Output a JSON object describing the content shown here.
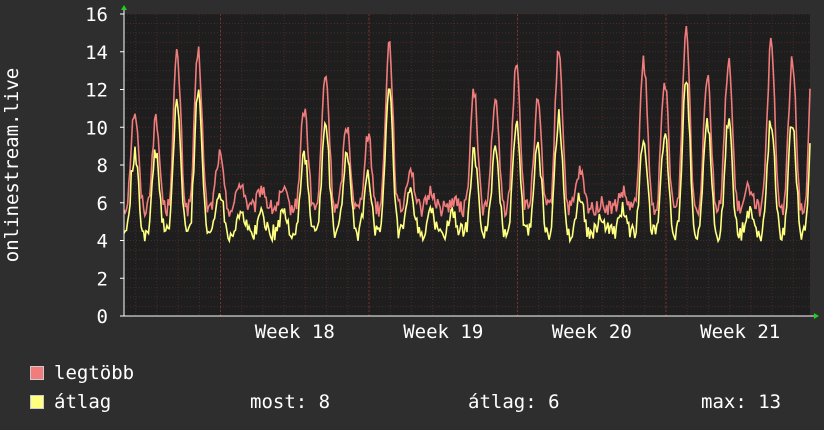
{
  "chart_data": {
    "type": "line",
    "ylabel": "onlinestream.live",
    "xlabel": "",
    "ylim": [
      0,
      16
    ],
    "yticks": [
      0,
      2,
      4,
      6,
      8,
      10,
      12,
      14,
      16
    ],
    "x_range_weeks": [
      17.35,
      21.97
    ],
    "x_tick_labels": [
      {
        "week": 18,
        "label": "Week 18"
      },
      {
        "week": 19,
        "label": "Week 19"
      },
      {
        "week": 20,
        "label": "Week 20"
      },
      {
        "week": 21,
        "label": "Week 21"
      }
    ],
    "grid": true,
    "background": "#1e1e1e",
    "series": [
      {
        "name": "legtöbb",
        "color": "#f07c7c",
        "daily_peaks": [
          10.9,
          10.3,
          13.8,
          14.0,
          8.5,
          7.1,
          6.8,
          6.5,
          11.0,
          12.8,
          10.1,
          9.6,
          14.5,
          7.9,
          6.6,
          6.1,
          11.8,
          11.3,
          13.6,
          11.2,
          14.2,
          7.6,
          5.9,
          6.5,
          13.4,
          12.3,
          15.2,
          12.9,
          13.6,
          6.9,
          14.3,
          13.5,
          14.9,
          12.5,
          11.9,
          9.8,
          14.4
        ],
        "baseline": 5.7
      },
      {
        "name": "átlag",
        "color": "#ffff80",
        "daily_peaks": [
          8.6,
          8.6,
          11.3,
          12.1,
          6.7,
          5.6,
          5.4,
          5.5,
          8.6,
          10.1,
          8.6,
          7.5,
          11.9,
          6.5,
          5.4,
          5.3,
          8.6,
          8.7,
          10.3,
          9.0,
          10.6,
          6.4,
          5.2,
          5.6,
          9.3,
          9.6,
          12.6,
          10.4,
          10.4,
          5.6,
          10.3,
          10.3,
          11.4,
          10.0,
          8.4,
          8.0,
          12.4
        ],
        "baseline": 4.4
      }
    ]
  },
  "legend": [
    {
      "label": "legtöbb",
      "color": "#f07c7c"
    },
    {
      "label": "átlag",
      "color": "#ffff80"
    }
  ],
  "stats": {
    "now": "most: 8",
    "avg": "átlag: 6",
    "max": "max: 13"
  }
}
